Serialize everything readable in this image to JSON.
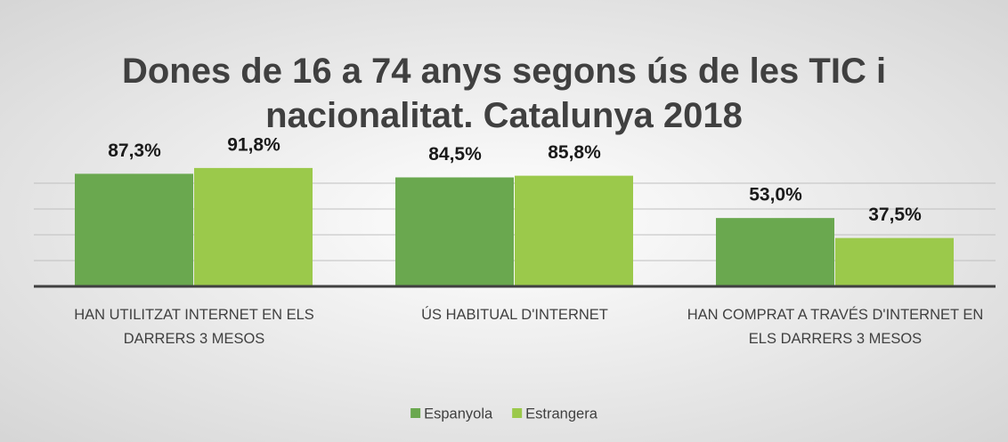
{
  "chart_data": {
    "type": "bar",
    "title": "Dones de 16 a 74 anys segons ús de les TIC i nacionalitat. Catalunya 2018",
    "categories": [
      "HAN UTILITZAT INTERNET EN ELS DARRERS 3 MESOS",
      "ÚS HABITUAL D'INTERNET",
      "HAN COMPRAT A TRAVÉS D'INTERNET EN ELS DARRERS 3 MESOS"
    ],
    "series": [
      {
        "name": "Espanyola",
        "color": "#6aa84f",
        "values": [
          87.3,
          84.5,
          53.0
        ],
        "value_labels": [
          "87,3%",
          "84,5%",
          "53,0%"
        ]
      },
      {
        "name": "Estrangera",
        "color": "#9bc94b",
        "values": [
          91.8,
          85.8,
          37.5
        ],
        "value_labels": [
          "91,8%",
          "85,8%",
          "37,5%"
        ]
      }
    ],
    "ylim": [
      0,
      100
    ],
    "yticks": [
      0,
      20,
      40,
      60,
      80
    ],
    "grid": true,
    "legend": "bottom"
  }
}
